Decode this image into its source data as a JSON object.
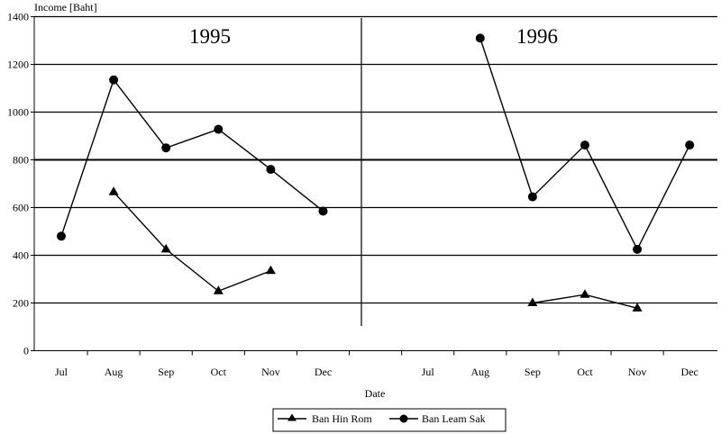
{
  "chart_data": {
    "type": "line",
    "ylabel": "Income [Baht]",
    "xlabel": "Date",
    "ylim": [
      0,
      1400
    ],
    "yticks": [
      0,
      200,
      400,
      600,
      800,
      1000,
      1200,
      1400
    ],
    "grid": true,
    "legend_position": "bottom",
    "categories": [
      "Jul",
      "Aug",
      "Sep",
      "Oct",
      "Nov",
      "Dec",
      "",
      "Jul",
      "Aug",
      "Sep",
      "Oct",
      "Nov",
      "Dec"
    ],
    "panels": [
      {
        "title": "1995",
        "categories": [
          "Jul",
          "Aug",
          "Sep",
          "Oct",
          "Nov",
          "Dec"
        ]
      },
      {
        "title": "1996",
        "categories": [
          "Jul",
          "Aug",
          "Sep",
          "Oct",
          "Nov",
          "Dec"
        ]
      }
    ],
    "series": [
      {
        "name": "Ban Hin Rom",
        "marker": "triangle",
        "values": [
          null,
          665,
          425,
          250,
          335,
          null,
          null,
          null,
          null,
          200,
          235,
          178,
          null
        ]
      },
      {
        "name": "Ban Leam Sak",
        "marker": "circle",
        "values": [
          480,
          1135,
          850,
          928,
          760,
          585,
          null,
          null,
          1310,
          645,
          862,
          425,
          862
        ]
      }
    ]
  }
}
